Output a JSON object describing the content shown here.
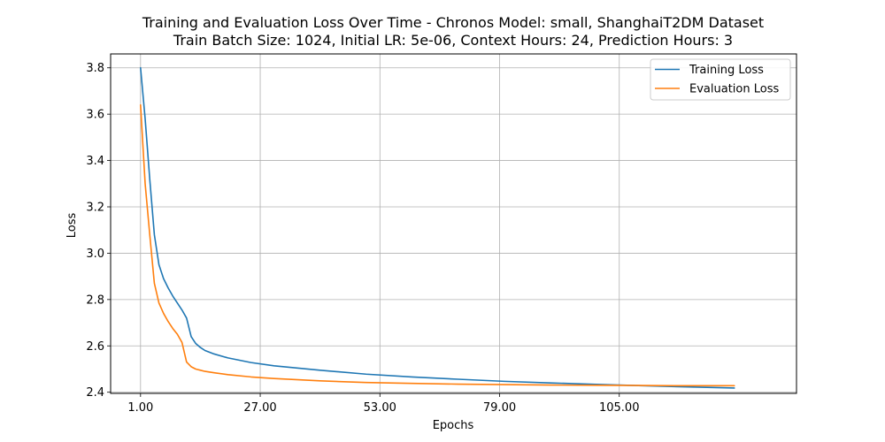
{
  "chart_data": {
    "type": "line",
    "title": "Training and Evaluation Loss Over Time - Chronos Model: small, ShanghaiT2DM Dataset",
    "subtitle": "Train Batch Size: 1024, Initial LR: 5e-06, Context Hours: 24, Prediction Hours: 3",
    "xlabel": "Epochs",
    "ylabel": "Loss",
    "xlim": [
      -5.5,
      143.5
    ],
    "ylim": [
      2.395,
      3.86
    ],
    "xticks": [
      1,
      27,
      53,
      79,
      105
    ],
    "xtick_labels": [
      "1.00",
      "27.00",
      "53.00",
      "79.00",
      "105.00"
    ],
    "yticks": [
      2.4,
      2.6,
      2.8,
      3.0,
      3.2,
      3.4,
      3.6,
      3.8
    ],
    "ytick_labels": [
      "2.4",
      "2.6",
      "2.8",
      "3.0",
      "3.2",
      "3.4",
      "3.6",
      "3.8"
    ],
    "grid": true,
    "legend_position": "top-right",
    "series": [
      {
        "name": "Training Loss",
        "color": "#1f77b4",
        "x": [
          1,
          2,
          3,
          4,
          5,
          6,
          7,
          8,
          9,
          10,
          11,
          12,
          13,
          14,
          15,
          17,
          20,
          25,
          30,
          40,
          50,
          60,
          70,
          80,
          90,
          100,
          110,
          120,
          130
        ],
        "y": [
          3.8,
          3.58,
          3.32,
          3.08,
          2.95,
          2.89,
          2.85,
          2.815,
          2.785,
          2.755,
          2.72,
          2.64,
          2.61,
          2.593,
          2.58,
          2.565,
          2.548,
          2.528,
          2.514,
          2.495,
          2.478,
          2.466,
          2.456,
          2.447,
          2.44,
          2.434,
          2.428,
          2.423,
          2.418
        ]
      },
      {
        "name": "Evaluation Loss",
        "color": "#ff7f0e",
        "x": [
          1,
          2,
          3,
          4,
          5,
          6,
          7,
          8,
          9,
          10,
          11,
          12,
          13,
          14,
          15,
          17,
          20,
          25,
          30,
          40,
          50,
          60,
          70,
          80,
          90,
          100,
          110,
          120,
          130
        ],
        "y": [
          3.64,
          3.3,
          3.08,
          2.87,
          2.785,
          2.74,
          2.705,
          2.675,
          2.65,
          2.615,
          2.53,
          2.51,
          2.5,
          2.495,
          2.49,
          2.484,
          2.476,
          2.466,
          2.459,
          2.449,
          2.442,
          2.438,
          2.435,
          2.433,
          2.431,
          2.43,
          2.429,
          2.428,
          2.428
        ]
      }
    ]
  }
}
